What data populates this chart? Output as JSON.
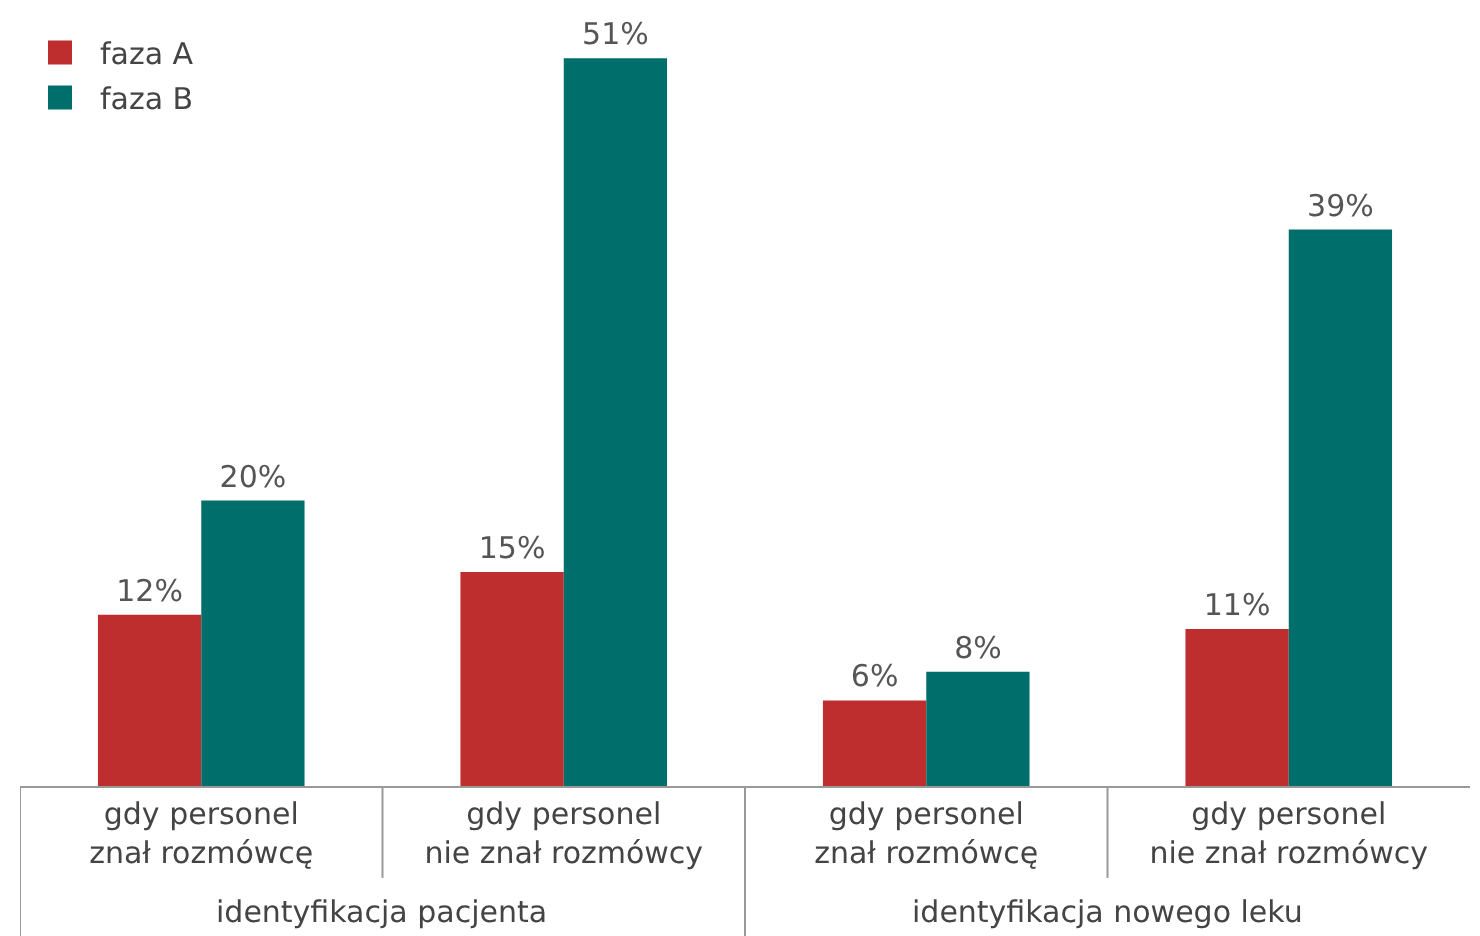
{
  "chart_data": {
    "type": "bar",
    "categories": [
      "gdy personel\nznał rozmówcę",
      "gdy personel\nnie znał rozmówcy",
      "gdy personel\nznał rozmówcę",
      "gdy personel\nnie znał rozmówcy"
    ],
    "series": [
      {
        "name": "faza A",
        "color": "#bf2e2e",
        "values": [
          12,
          15,
          6,
          11
        ],
        "value_labels": [
          "12%",
          "15%",
          "6%",
          "11%"
        ]
      },
      {
        "name": "faza B",
        "color": "#006e6b",
        "values": [
          20,
          51,
          8,
          39
        ],
        "value_labels": [
          "20%",
          "51%",
          "8%",
          "39%"
        ]
      }
    ],
    "annotations": [
      "identyfikacja pacjenta",
      "identyfikacja nowego leku"
    ],
    "legend": "top left"
  }
}
